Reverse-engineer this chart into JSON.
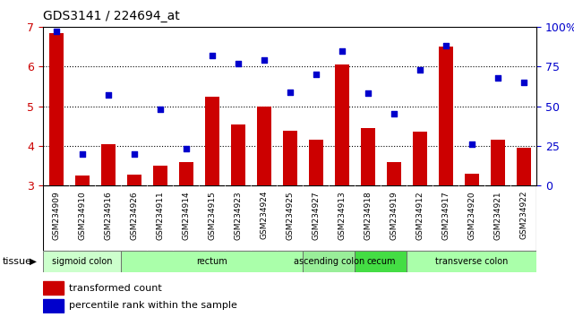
{
  "title": "GDS3141 / 224694_at",
  "samples": [
    "GSM234909",
    "GSM234910",
    "GSM234916",
    "GSM234926",
    "GSM234911",
    "GSM234914",
    "GSM234915",
    "GSM234923",
    "GSM234924",
    "GSM234925",
    "GSM234927",
    "GSM234913",
    "GSM234918",
    "GSM234919",
    "GSM234912",
    "GSM234917",
    "GSM234920",
    "GSM234921",
    "GSM234922"
  ],
  "bar_values": [
    6.85,
    3.25,
    4.05,
    3.28,
    3.5,
    3.6,
    5.25,
    4.55,
    5.0,
    4.38,
    4.15,
    6.05,
    4.45,
    3.58,
    4.35,
    6.5,
    3.3,
    4.15,
    3.95
  ],
  "dot_values": [
    97,
    20,
    57,
    20,
    48,
    23,
    82,
    77,
    79,
    59,
    70,
    85,
    58,
    45,
    73,
    88,
    26,
    68,
    65
  ],
  "ylim_left": [
    3,
    7
  ],
  "ylim_right": [
    0,
    100
  ],
  "yticks_left": [
    3,
    4,
    5,
    6,
    7
  ],
  "yticks_right": [
    0,
    25,
    50,
    75,
    100
  ],
  "bar_color": "#cc0000",
  "dot_color": "#0000cc",
  "tissue_groups": [
    {
      "label": "sigmoid colon",
      "start": 0,
      "end": 3,
      "color": "#ccffcc"
    },
    {
      "label": "rectum",
      "start": 3,
      "end": 10,
      "color": "#aaffaa"
    },
    {
      "label": "ascending colon",
      "start": 10,
      "end": 12,
      "color": "#99ee99"
    },
    {
      "label": "cecum",
      "start": 12,
      "end": 14,
      "color": "#44dd44"
    },
    {
      "label": "transverse colon",
      "start": 14,
      "end": 19,
      "color": "#aaffaa"
    }
  ],
  "legend_items": [
    {
      "label": "transformed count",
      "color": "#cc0000"
    },
    {
      "label": "percentile rank within the sample",
      "color": "#0000cc"
    }
  ],
  "xlabel_tissue": "tissue"
}
